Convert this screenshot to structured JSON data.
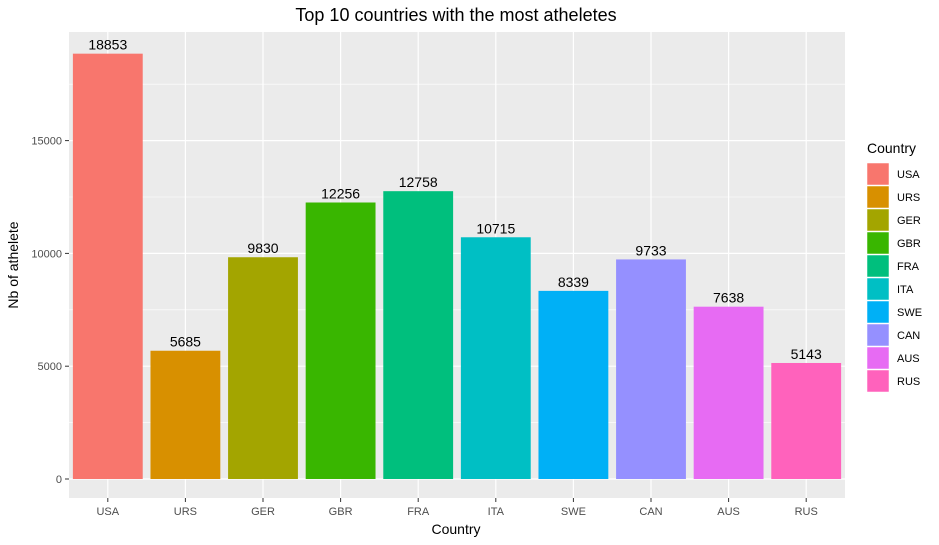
{
  "chart_data": {
    "type": "bar",
    "title": "Top 10 countries with the most atheletes",
    "xlabel": "Country",
    "ylabel": "Nb of athelete",
    "categories": [
      "USA",
      "URS",
      "GER",
      "GBR",
      "FRA",
      "ITA",
      "SWE",
      "CAN",
      "AUS",
      "RUS"
    ],
    "values": [
      18853,
      5685,
      9830,
      12256,
      12758,
      10715,
      8339,
      9733,
      7638,
      5143
    ],
    "colors": [
      "#F8766D",
      "#D89000",
      "#A3A500",
      "#39B600",
      "#00BF7D",
      "#00BFC4",
      "#00B0F6",
      "#9590FF",
      "#E76BF3",
      "#FF62BC"
    ],
    "yticks": [
      0,
      5000,
      10000,
      15000
    ],
    "ylim": [
      0,
      20000
    ],
    "grid": true,
    "legend": {
      "title": "Country",
      "placement": "right"
    }
  }
}
